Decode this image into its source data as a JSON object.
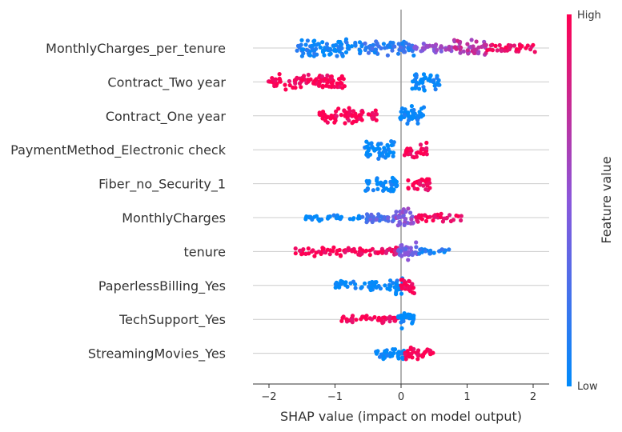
{
  "chart_data": {
    "type": "scatter",
    "subtype": "shap-beeswarm",
    "xlabel": "SHAP value (impact on model output)",
    "xlim": [
      -2.2,
      2.2
    ],
    "xticks": [
      -2,
      -1,
      0,
      1,
      2
    ],
    "grid": "horizontal lines per feature",
    "colorbar": {
      "label": "Feature value",
      "high": "High",
      "low": "Low",
      "low_color": "#008bfb",
      "high_color": "#ff0052"
    },
    "features": [
      {
        "name": "MonthlyCharges_per_tenure",
        "segments": [
          {
            "from": -1.6,
            "to": -0.6,
            "fv": 0.05,
            "density": 1.0
          },
          {
            "from": -0.6,
            "to": 0.2,
            "fv": 0.15,
            "density": 0.8
          },
          {
            "from": 0.2,
            "to": 0.8,
            "fv": 0.55,
            "density": 0.5
          },
          {
            "from": 0.8,
            "to": 1.3,
            "fv": 0.7,
            "density": 0.9
          },
          {
            "from": 1.3,
            "to": 2.05,
            "fv": 0.95,
            "density": 0.45
          }
        ]
      },
      {
        "name": "Contract_Two year",
        "segments": [
          {
            "from": -2.05,
            "to": -0.85,
            "fv": 1.0,
            "density": 0.8
          },
          {
            "from": 0.15,
            "to": 0.6,
            "fv": 0.0,
            "density": 1.0
          }
        ]
      },
      {
        "name": "Contract_One year",
        "segments": [
          {
            "from": -1.25,
            "to": -0.35,
            "fv": 1.0,
            "density": 0.8
          },
          {
            "from": -0.05,
            "to": 0.35,
            "fv": 0.0,
            "density": 1.0
          }
        ]
      },
      {
        "name": "PaymentMethod_Electronic check",
        "segments": [
          {
            "from": -0.55,
            "to": -0.1,
            "fv": 0.0,
            "density": 1.0
          },
          {
            "from": 0.05,
            "to": 0.4,
            "fv": 1.0,
            "density": 0.9
          }
        ]
      },
      {
        "name": "Fiber_no_Security_1",
        "segments": [
          {
            "from": -0.55,
            "to": -0.05,
            "fv": 0.0,
            "density": 0.9
          },
          {
            "from": 0.1,
            "to": 0.45,
            "fv": 1.0,
            "density": 0.7
          }
        ]
      },
      {
        "name": "MonthlyCharges",
        "segments": [
          {
            "from": -1.45,
            "to": -0.6,
            "fv": 0.0,
            "density": 0.35
          },
          {
            "from": -0.6,
            "to": -0.1,
            "fv": 0.3,
            "density": 0.6
          },
          {
            "from": -0.1,
            "to": 0.2,
            "fv": 0.5,
            "density": 1.0
          },
          {
            "from": 0.2,
            "to": 0.95,
            "fv": 0.95,
            "density": 0.45
          }
        ]
      },
      {
        "name": "tenure",
        "segments": [
          {
            "from": -1.6,
            "to": -0.3,
            "fv": 1.0,
            "density": 0.5
          },
          {
            "from": -0.3,
            "to": -0.05,
            "fv": 0.9,
            "density": 0.6
          },
          {
            "from": -0.05,
            "to": 0.25,
            "fv": 0.4,
            "density": 1.0
          },
          {
            "from": 0.25,
            "to": 0.75,
            "fv": 0.1,
            "density": 0.35
          }
        ]
      },
      {
        "name": "PaperlessBilling_Yes",
        "segments": [
          {
            "from": -1.0,
            "to": -0.1,
            "fv": 0.0,
            "density": 0.5
          },
          {
            "from": -0.1,
            "to": 0.05,
            "fv": 0.0,
            "density": 1.0
          },
          {
            "from": 0.0,
            "to": 0.2,
            "fv": 1.0,
            "density": 1.0
          }
        ]
      },
      {
        "name": "TechSupport_Yes",
        "segments": [
          {
            "from": -0.9,
            "to": -0.05,
            "fv": 1.0,
            "density": 0.5
          },
          {
            "from": -0.05,
            "to": 0.2,
            "fv": 0.0,
            "density": 1.0
          }
        ]
      },
      {
        "name": "StreamingMovies_Yes",
        "segments": [
          {
            "from": -0.4,
            "to": -0.05,
            "fv": 0.0,
            "density": 0.6
          },
          {
            "from": -0.05,
            "to": 0.05,
            "fv": 0.0,
            "density": 1.0
          },
          {
            "from": 0.05,
            "to": 0.5,
            "fv": 1.0,
            "density": 0.7
          }
        ]
      }
    ]
  }
}
